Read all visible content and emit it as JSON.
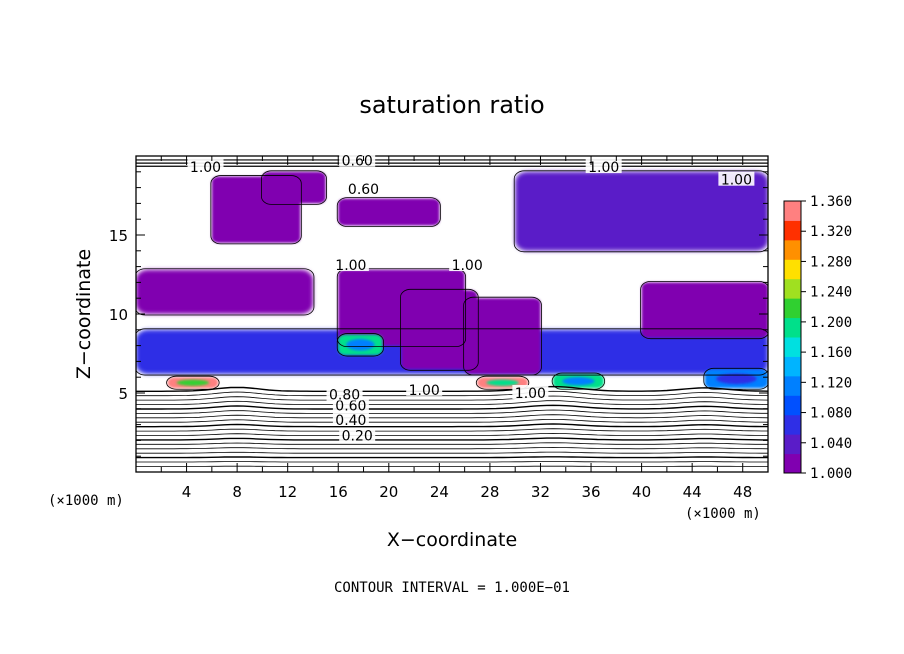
{
  "chart_data": {
    "type": "heatmap",
    "title": "saturation ratio",
    "xlabel": "X−coordinate",
    "ylabel": "Z−coordinate",
    "x_unit_left": "(×1000 m)",
    "x_unit_right": "(×1000 m)",
    "footer": "CONTOUR INTERVAL = 1.000E−01",
    "xlim": [
      0,
      50
    ],
    "ylim": [
      0,
      20
    ],
    "xticks": [
      4,
      8,
      12,
      16,
      20,
      24,
      28,
      32,
      36,
      40,
      44,
      48
    ],
    "yticks": [
      5,
      10,
      15
    ],
    "colorbar": {
      "min": 1.0,
      "max": 1.36,
      "ticks": [
        "1.360",
        "1.320",
        "1.280",
        "1.240",
        "1.200",
        "1.160",
        "1.120",
        "1.080",
        "1.040",
        "1.000"
      ],
      "colors": [
        "#8000b0",
        "#5a1cc8",
        "#2f2fe6",
        "#0050ff",
        "#0080ff",
        "#00b4ff",
        "#00e0e0",
        "#00e08a",
        "#30d030",
        "#a0e020",
        "#ffe000",
        "#ff9000",
        "#ff3000",
        "#ff8080"
      ]
    },
    "contour_levels": [
      {
        "value": 0.2,
        "label": "0.20"
      },
      {
        "value": 0.4,
        "label": "0.40"
      },
      {
        "value": 0.6,
        "label": "0.60"
      },
      {
        "value": 0.8,
        "label": "0.80"
      },
      {
        "value": 1.0,
        "label": "1.00"
      }
    ],
    "contour_labels_shown": [
      {
        "text": "0.20",
        "x": 17.5,
        "z": 2.3
      },
      {
        "text": "0.40",
        "x": 17.0,
        "z": 3.3
      },
      {
        "text": "0.60",
        "x": 17.0,
        "z": 4.2
      },
      {
        "text": "0.80",
        "x": 16.5,
        "z": 4.9
      },
      {
        "text": "1.00",
        "x": 22.8,
        "z": 5.2
      },
      {
        "text": "1.00",
        "x": 31.2,
        "z": 5.0
      },
      {
        "text": "1.00",
        "x": 17.0,
        "z": 13.1
      },
      {
        "text": "1.00",
        "x": 26.2,
        "z": 13.1
      },
      {
        "text": "1.00",
        "x": 5.5,
        "z": 19.3
      },
      {
        "text": "1.00",
        "x": 37.0,
        "z": 19.3
      },
      {
        "text": "1.00",
        "x": 47.5,
        "z": 18.5
      },
      {
        "text": "0.60",
        "x": 17.5,
        "z": 19.7
      },
      {
        "text": "0.60",
        "x": 18.0,
        "z": 17.9
      }
    ],
    "supersaturated_regions": [
      {
        "x0": 0,
        "x1": 50,
        "z0": 6.2,
        "z1": 9.0,
        "peak": 1.06
      },
      {
        "x0": 0,
        "x1": 14,
        "z0": 10,
        "z1": 12.8,
        "peak": 1.01
      },
      {
        "x0": 6,
        "x1": 13,
        "z0": 14.5,
        "z1": 18.7,
        "peak": 1.01
      },
      {
        "x0": 10,
        "x1": 15,
        "z0": 17.0,
        "z1": 19.0,
        "peak": 1.02
      },
      {
        "x0": 16,
        "x1": 26,
        "z0": 8.0,
        "z1": 12.8,
        "peak": 1.01
      },
      {
        "x0": 21,
        "x1": 27,
        "z0": 6.5,
        "z1": 11.5,
        "peak": 1.01
      },
      {
        "x0": 16,
        "x1": 24,
        "z0": 15.6,
        "z1": 17.3,
        "peak": 1.01
      },
      {
        "x0": 26,
        "x1": 32,
        "z0": 6.2,
        "z1": 11.0,
        "peak": 1.02
      },
      {
        "x0": 30,
        "x1": 50,
        "z0": 14,
        "z1": 19,
        "peak": 1.03
      },
      {
        "x0": 40,
        "x1": 50,
        "z0": 8.5,
        "z1": 12.0,
        "peak": 1.02
      },
      {
        "x0": 16,
        "x1": 19.5,
        "z0": 7.4,
        "z1": 8.7,
        "peak": 1.2
      },
      {
        "x0": 2.5,
        "x1": 6.5,
        "z0": 5.3,
        "z1": 6.0,
        "peak": 1.36
      },
      {
        "x0": 27,
        "x1": 31,
        "z0": 5.3,
        "z1": 6.0,
        "peak": 1.34
      },
      {
        "x0": 33,
        "x1": 37,
        "z0": 5.3,
        "z1": 6.2,
        "peak": 1.2
      },
      {
        "x0": 45,
        "x1": 50,
        "z0": 5.3,
        "z1": 6.5,
        "peak": 1.12
      }
    ]
  }
}
